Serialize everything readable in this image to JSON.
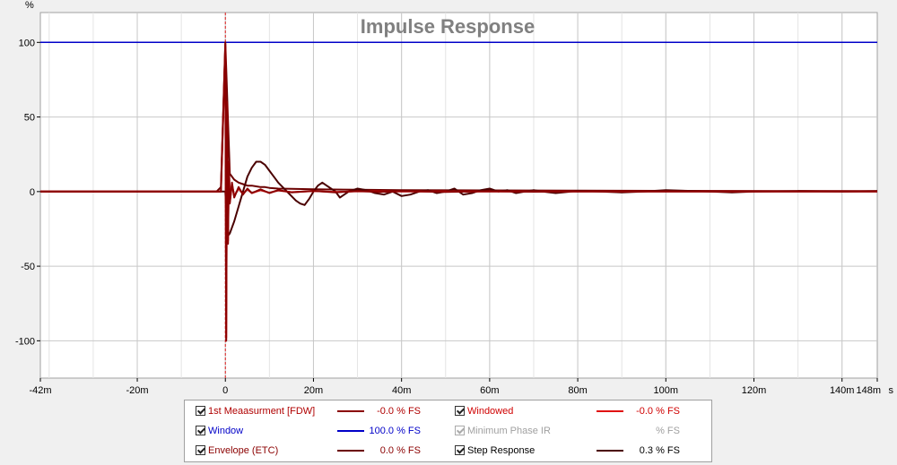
{
  "chart_data": {
    "type": "line",
    "title": "Impulse Response",
    "y_unit_label": "%",
    "x_unit_label": "s",
    "xlim": [
      -0.042,
      0.148
    ],
    "ylim": [
      -125,
      120
    ],
    "x_ticks": [
      {
        "value": -0.042,
        "label": "-42m"
      },
      {
        "value": -0.02,
        "label": "-20m"
      },
      {
        "value": 0,
        "label": "0"
      },
      {
        "value": 0.02,
        "label": "20m"
      },
      {
        "value": 0.04,
        "label": "40m"
      },
      {
        "value": 0.06,
        "label": "60m"
      },
      {
        "value": 0.08,
        "label": "80m"
      },
      {
        "value": 0.1,
        "label": "100m"
      },
      {
        "value": 0.12,
        "label": "120m"
      },
      {
        "value": 0.14,
        "label": "140m"
      },
      {
        "value": 0.148,
        "label": "148m"
      }
    ],
    "y_ticks": [
      100,
      50,
      0,
      -50,
      -100
    ],
    "grid": true,
    "series": [
      {
        "name": "1st Meaasurment [FDW]",
        "color": "#8b0000",
        "x": [
          -0.042,
          -0.001,
          0,
          0.0002,
          0.0004,
          0.0006,
          0.0008,
          0.001,
          0.0015,
          0.002,
          0.003,
          0.004,
          0.005,
          0.006,
          0.008,
          0.01,
          0.012,
          0.015,
          0.02,
          0.025,
          0.03,
          0.035,
          0.04,
          0.05,
          0.06,
          0.07,
          0.08,
          0.1,
          0.12,
          0.148
        ],
        "y": [
          0,
          0,
          99,
          -100,
          60,
          -35,
          20,
          -8,
          6,
          -4,
          3,
          -2,
          2,
          -1,
          1.5,
          -1,
          1,
          -0.5,
          0.5,
          -0.5,
          0.3,
          -0.3,
          0.3,
          -0.2,
          0.2,
          -0.1,
          0.1,
          0,
          0,
          0
        ]
      },
      {
        "name": "Windowed",
        "color": "#e01010",
        "x": [
          -0.042,
          -0.001,
          0,
          0.0002,
          0.0004,
          0.0006,
          0.0008,
          0.001,
          0.0015,
          0.002,
          0.003,
          0.004,
          0.005,
          0.006,
          0.008,
          0.01,
          0.012,
          0.015,
          0.02,
          0.025,
          0.03,
          0.04,
          0.05,
          0.06,
          0.148
        ],
        "y": [
          0,
          0,
          97,
          -98,
          58,
          -33,
          18,
          -7,
          5,
          -3,
          2,
          -1.5,
          1.5,
          -1,
          1,
          -0.8,
          0.8,
          -0.4,
          0.4,
          -0.3,
          0.2,
          0.1,
          0,
          0,
          0
        ]
      },
      {
        "name": "Window",
        "color": "#0000c8",
        "x": [
          -0.042,
          0.148
        ],
        "y": [
          100,
          100
        ]
      },
      {
        "name": "Minimum Phase IR",
        "color": "#b0b0b0",
        "x": [],
        "y": []
      },
      {
        "name": "Envelope (ETC)",
        "color": "#6b0000",
        "x": [
          -0.042,
          -0.002,
          -0.001,
          0,
          0.001,
          0.002,
          0.003,
          0.004,
          0.005,
          0.006,
          0.007,
          0.008,
          0.009,
          0.01,
          0.012,
          0.015,
          0.02,
          0.03,
          0.04,
          0.06,
          0.08,
          0.1,
          0.148
        ],
        "y": [
          0,
          0,
          3,
          100,
          12,
          8,
          6,
          5,
          4,
          4,
          3.5,
          3,
          3,
          2.5,
          2,
          1.8,
          1.5,
          1.2,
          1,
          0.8,
          0.6,
          0.5,
          0.3
        ]
      },
      {
        "name": "Step Response",
        "color": "#4a0000",
        "x": [
          -0.042,
          -0.001,
          0,
          0.0005,
          0.001,
          0.002,
          0.003,
          0.004,
          0.005,
          0.006,
          0.007,
          0.008,
          0.009,
          0.01,
          0.011,
          0.012,
          0.013,
          0.014,
          0.015,
          0.016,
          0.017,
          0.018,
          0.019,
          0.02,
          0.021,
          0.022,
          0.023,
          0.024,
          0.025,
          0.026,
          0.027,
          0.028,
          0.03,
          0.032,
          0.034,
          0.036,
          0.038,
          0.04,
          0.042,
          0.044,
          0.046,
          0.048,
          0.05,
          0.052,
          0.054,
          0.056,
          0.058,
          0.06,
          0.062,
          0.064,
          0.066,
          0.068,
          0.07,
          0.072,
          0.075,
          0.08,
          0.085,
          0.09,
          0.095,
          0.1,
          0.105,
          0.11,
          0.115,
          0.12,
          0.13,
          0.14,
          0.148
        ],
        "y": [
          0,
          0,
          0,
          -30,
          -28,
          -20,
          -10,
          0,
          10,
          16,
          20,
          20,
          18,
          14,
          10,
          6,
          3,
          0,
          -3,
          -6,
          -8,
          -9,
          -5,
          0,
          4,
          6,
          4,
          2,
          0,
          -4,
          -2,
          0,
          2,
          1,
          -1,
          -2,
          0,
          -3,
          -2,
          0,
          1,
          -1,
          0,
          2,
          -2,
          -1,
          1,
          2,
          0,
          1,
          -1,
          0,
          1,
          0,
          -1,
          0.5,
          0,
          -0.5,
          0,
          1,
          0.5,
          0,
          -0.5,
          0,
          0.3,
          0,
          0.3
        ]
      }
    ]
  },
  "legend": {
    "items": [
      {
        "name": "1st Meaasurment [FDW]",
        "value": "-0.0 % FS",
        "checked": true,
        "text_color": "#b00000",
        "swatch": "#8b0000"
      },
      {
        "name": "Windowed",
        "value": "-0.0 % FS",
        "checked": true,
        "text_color": "#d00000",
        "swatch": "#e01010"
      },
      {
        "name": "Window",
        "value": "100.0 % FS",
        "checked": true,
        "text_color": "#0000c8",
        "swatch": "#0000c8"
      },
      {
        "name": "Minimum Phase IR",
        "value": "% FS",
        "checked": true,
        "text_color": "#a0a0a0",
        "swatch": "",
        "disabled": true
      },
      {
        "name": "Envelope (ETC)",
        "value": "0.0 % FS",
        "checked": true,
        "text_color": "#8b0000",
        "swatch": "#6b0000"
      },
      {
        "name": "Step Response",
        "value": "0.3 % FS",
        "checked": true,
        "text_color": "#000000",
        "swatch": "#4a0000"
      }
    ]
  }
}
